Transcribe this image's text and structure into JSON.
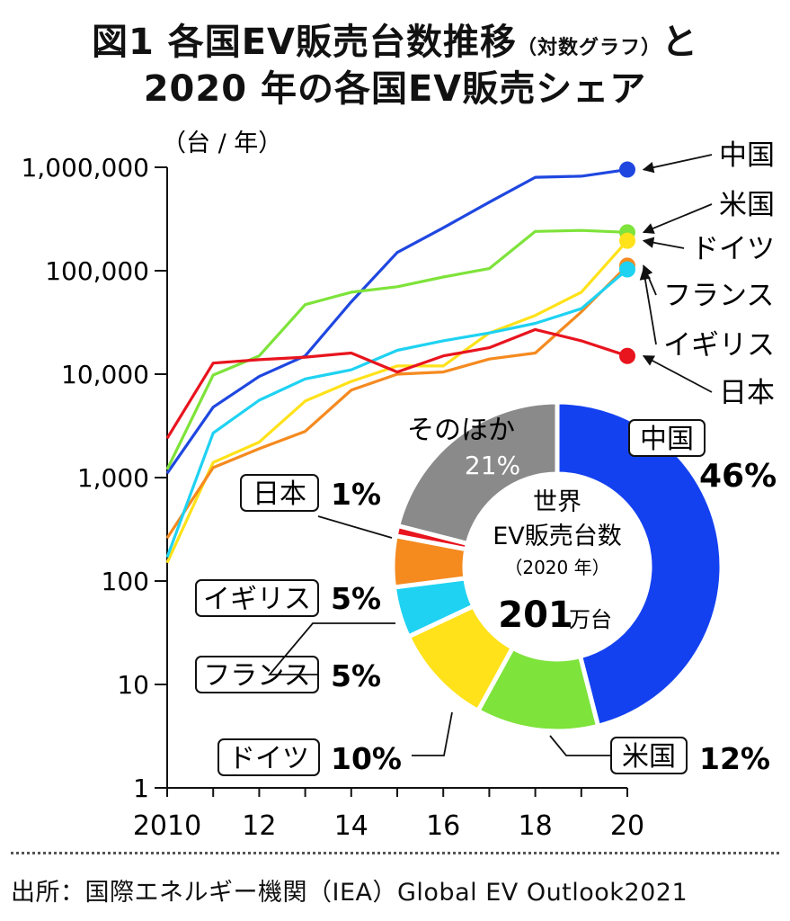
{
  "title": {
    "line1_main": "図1 各国EV販売台数推移",
    "line1_small": "（対数グラフ）",
    "line1_end": "と",
    "line2": "2020 年の各国EV販売シェア"
  },
  "source": "出所：国際エネルギー機関（IEA）Global EV Outlook2021",
  "chart_data": [
    {
      "type": "line",
      "ylabel": "（台 / 年）",
      "yscale": "log",
      "ylim": [
        1,
        1000000
      ],
      "y_tick_labels": [
        "1,000,000",
        "100,000",
        "10,000",
        "1,000",
        "100",
        "10",
        "1"
      ],
      "y_tick_values": [
        1000000,
        100000,
        10000,
        1000,
        100,
        10,
        1
      ],
      "xlim": [
        2010,
        2020
      ],
      "x_tick_labels": [
        "2010",
        "12",
        "14",
        "16",
        "18",
        "20"
      ],
      "x_tick_values": [
        2010,
        2012,
        2014,
        2016,
        2018,
        2020
      ],
      "x": [
        2010,
        2011,
        2012,
        2013,
        2014,
        2015,
        2016,
        2017,
        2018,
        2019,
        2020
      ],
      "series": [
        {
          "name": "中国",
          "color": "#1f47e0",
          "values": [
            1100,
            4800,
            9500,
            15000,
            50000,
            150000,
            260000,
            460000,
            800000,
            820000,
            950000
          ]
        },
        {
          "name": "米国",
          "color": "#7ee33a",
          "values": [
            1200,
            9800,
            15000,
            47000,
            62000,
            70000,
            87000,
            105000,
            240000,
            245000,
            235000
          ]
        },
        {
          "name": "ドイツ",
          "color": "#ffe21a",
          "values": [
            150,
            1400,
            2200,
            5500,
            8500,
            12000,
            12000,
            25000,
            37000,
            62000,
            195000
          ]
        },
        {
          "name": "フランス",
          "color": "#f58a1f",
          "values": [
            260,
            1250,
            1900,
            2800,
            7000,
            10000,
            10500,
            14000,
            16000,
            40000,
            112000
          ]
        },
        {
          "name": "イギリス",
          "color": "#1fd2f2",
          "values": [
            170,
            2700,
            5600,
            9000,
            11000,
            17000,
            21000,
            25000,
            31000,
            43000,
            103000
          ]
        },
        {
          "name": "日本",
          "color": "#e8141e",
          "values": [
            2400,
            12800,
            13800,
            14600,
            16000,
            10500,
            15000,
            18000,
            27000,
            21000,
            15000
          ]
        }
      ]
    },
    {
      "type": "pie",
      "center_text": [
        "世界",
        "EV販売台数",
        "（2020 年）"
      ],
      "center_value": "201",
      "center_unit": "万台",
      "slices": [
        {
          "name": "中国",
          "value": 46,
          "label": "46%",
          "color": "#1441f0"
        },
        {
          "name": "米国",
          "value": 12,
          "label": "12%",
          "color": "#7ee33a"
        },
        {
          "name": "ドイツ",
          "value": 10,
          "label": "10%",
          "color": "#ffe21a"
        },
        {
          "name": "フランス",
          "value": 5,
          "label": "5%",
          "color": "#1fd2f2"
        },
        {
          "name": "イギリス",
          "value": 5,
          "label": "5%",
          "color": "#f58a1f"
        },
        {
          "name": "日本",
          "value": 1,
          "label": "1%",
          "color": "#e8141e"
        },
        {
          "name": "そのほか",
          "value": 21,
          "label": "21%",
          "color": "#8a8a8a"
        }
      ]
    }
  ]
}
